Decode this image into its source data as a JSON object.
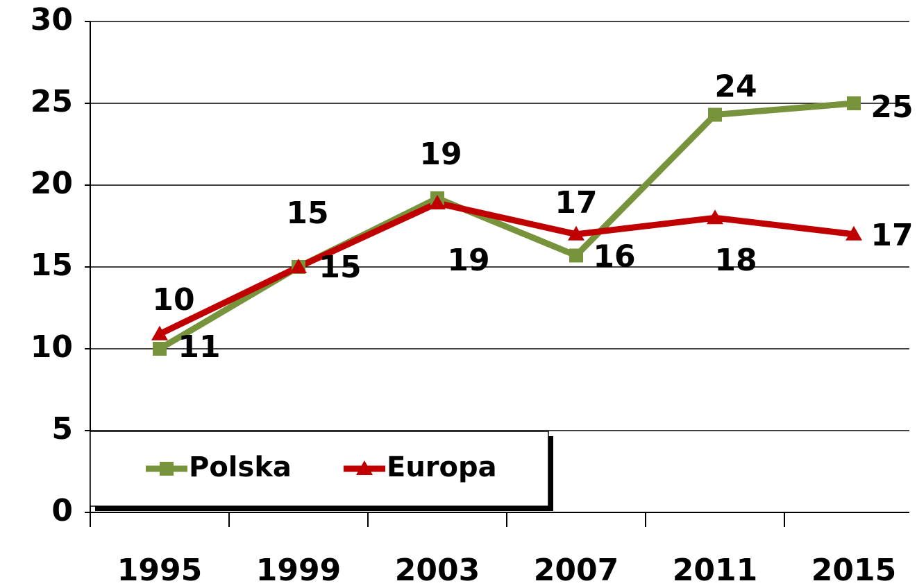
{
  "chart_data": {
    "type": "line",
    "categories": [
      "1995",
      "1999",
      "2003",
      "2007",
      "2011",
      "2015"
    ],
    "series": [
      {
        "name": "Polska",
        "color": "#77933c",
        "values": [
          10,
          15,
          19.2,
          15.7,
          24.3,
          25
        ],
        "value_labels": [
          "10",
          "15",
          "19",
          "16",
          "24",
          "25"
        ]
      },
      {
        "name": "Europa",
        "color": "#c00000",
        "values": [
          10.9,
          15,
          18.9,
          17,
          18,
          17
        ],
        "value_labels": [
          "11",
          "15",
          "19",
          "17",
          "18",
          "17"
        ]
      }
    ],
    "ylim": [
      0,
      30
    ],
    "yticks": [
      0,
      5,
      10,
      15,
      20,
      25,
      30
    ],
    "grid": true
  }
}
